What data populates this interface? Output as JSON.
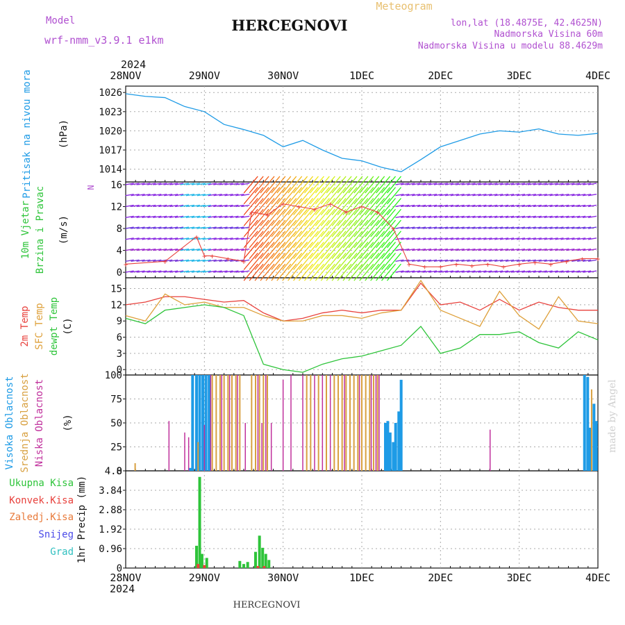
{
  "header": {
    "model_label": "Model",
    "model_name": "wrf-nmm_v3.9.1 e1km",
    "station": "HERCEGNOVI",
    "product": "Meteogram",
    "lonlat": "lon,lat (18.4875E, 42.4625N)",
    "altitude": "Nadmorska Visina 60m",
    "model_altitude": "Nadmorska Visina u modelu 88.4629m",
    "year_top": "2024",
    "year_bottom": "2024",
    "footer_station": "HERCEGNOVI",
    "credit": "made by Angel"
  },
  "colors": {
    "pressure": "#1e9be6",
    "temp2m": "#e8413c",
    "sfctemp": "#dea03a",
    "dewpt": "#2ec43a",
    "high_cloud": "#1e9be6",
    "mid_cloud": "#d8a040",
    "low_cloud": "#c0309c",
    "precip_total": "#2ec43a",
    "precip_conv": "#e8413c",
    "precip_frozen": "#e87a3a",
    "snow": "#4a4ae8",
    "hail": "#30c0c0",
    "wind_axis": "#2ec43a",
    "grid": "#aaaaaa",
    "model_text": "#b050d0"
  },
  "time_axis": {
    "labels": [
      "28NOV",
      "29NOV",
      "30NOV",
      "1DEC",
      "2DEC",
      "3DEC",
      "4DEC"
    ]
  },
  "chart_data": [
    {
      "type": "line",
      "panel": "pressure",
      "ylabel_lines": [
        "Pritisak na nivou mora"
      ],
      "unit": "(hPa)",
      "ylim": [
        1012,
        1027
      ],
      "yticks": [
        1014,
        1017,
        1020,
        1023,
        1026
      ],
      "series": [
        {
          "x": [
            0,
            0.25,
            0.5,
            0.75,
            1.0,
            1.25,
            1.5,
            1.75,
            2.0,
            2.25,
            2.5,
            2.75,
            3.0,
            3.25,
            3.5,
            3.75,
            4.0,
            4.25,
            4.5,
            4.75,
            5.0,
            5.25,
            5.5,
            5.75,
            6.0
          ],
          "values": [
            1025.8,
            1025.4,
            1025.2,
            1023.8,
            1023.0,
            1021.0,
            1020.2,
            1019.3,
            1017.5,
            1018.5,
            1017.0,
            1015.7,
            1015.3,
            1014.3,
            1013.6,
            1015.5,
            1017.5,
            1018.5,
            1019.5,
            1020.0,
            1019.8,
            1020.3,
            1019.5,
            1019.3,
            1019.6
          ]
        }
      ]
    },
    {
      "type": "line",
      "panel": "wind",
      "ylabel_lines": [
        "10m Vjetar",
        "Brzina i Pravac"
      ],
      "unit": "(m/s)",
      "ylim": [
        -1,
        16.5
      ],
      "yticks": [
        0,
        4,
        8,
        12,
        16
      ],
      "compass": "N",
      "series": [
        {
          "x": [
            0,
            0.5,
            0.9,
            1.0,
            1.1,
            1.3,
            1.5,
            1.6,
            1.8,
            2.0,
            2.2,
            2.4,
            2.6,
            2.8,
            3.0,
            3.2,
            3.4,
            3.6,
            3.8,
            4.0,
            4.2,
            4.4,
            4.6,
            4.8,
            5.0,
            5.2,
            5.4,
            5.6,
            5.8,
            6.0
          ],
          "values": [
            1.5,
            2.0,
            6.5,
            3.0,
            3.0,
            2.5,
            2.0,
            11.0,
            10.5,
            12.5,
            12.0,
            11.5,
            12.5,
            11.0,
            12.0,
            11.0,
            8.0,
            1.5,
            1.0,
            1.0,
            1.5,
            1.2,
            1.5,
            1.0,
            1.5,
            1.8,
            1.5,
            2.0,
            2.5,
            2.5
          ]
        }
      ]
    },
    {
      "type": "line",
      "panel": "temperature",
      "ylabel_lines": [
        "2m Temp",
        "SFC Temp",
        "dewpt Temp"
      ],
      "unit": "(C)",
      "ylim": [
        -1,
        17
      ],
      "yticks": [
        0,
        3,
        6,
        9,
        12,
        15
      ],
      "x": [
        0,
        0.25,
        0.5,
        0.75,
        1.0,
        1.25,
        1.5,
        1.75,
        2.0,
        2.25,
        2.5,
        2.75,
        3.0,
        3.25,
        3.5,
        3.75,
        4.0,
        4.25,
        4.5,
        4.75,
        5.0,
        5.25,
        5.5,
        5.75,
        6.0
      ],
      "series": [
        {
          "name": "2m Temp",
          "values": [
            12.0,
            12.5,
            13.5,
            13.5,
            13.0,
            12.5,
            12.8,
            10.5,
            9.0,
            9.5,
            10.5,
            11.0,
            10.5,
            11.0,
            11.0,
            16.0,
            12.0,
            12.5,
            11.0,
            13.0,
            11.0,
            12.5,
            11.5,
            11.0,
            11.0
          ]
        },
        {
          "name": "SFC Temp",
          "values": [
            10.0,
            9.0,
            14.0,
            12.0,
            12.5,
            11.5,
            11.5,
            10.0,
            9.0,
            9.0,
            10.0,
            10.0,
            9.5,
            10.5,
            11.0,
            16.5,
            11.0,
            9.5,
            8.0,
            14.5,
            10.0,
            7.5,
            13.5,
            9.0,
            8.5
          ]
        },
        {
          "name": "dewpt Temp",
          "values": [
            9.5,
            8.5,
            11.0,
            11.5,
            12.0,
            11.5,
            10.0,
            1.0,
            0.0,
            -0.5,
            1.0,
            2.0,
            2.5,
            3.5,
            4.5,
            8.0,
            3.0,
            4.0,
            6.5,
            6.5,
            7.0,
            5.0,
            4.0,
            7.0,
            5.5
          ]
        }
      ]
    },
    {
      "type": "bar",
      "panel": "clouds",
      "ylabel_lines": [
        "Visoka Oblacnost",
        "Srednja Oblacnost",
        "Niska Oblacnost"
      ],
      "unit": "(%)",
      "ylim": [
        0,
        100
      ],
      "yticks": [
        0,
        25,
        50,
        75,
        100
      ],
      "series": [
        {
          "name": "Visoka Oblacnost",
          "bars": [
            [
              0.82,
              3
            ],
            [
              0.85,
              100
            ],
            [
              0.9,
              100
            ],
            [
              0.94,
              100
            ],
            [
              0.98,
              100
            ],
            [
              1.02,
              100
            ],
            [
              1.06,
              100
            ],
            [
              3.3,
              50
            ],
            [
              3.33,
              52
            ],
            [
              3.36,
              40
            ],
            [
              3.4,
              30
            ],
            [
              3.43,
              50
            ],
            [
              3.47,
              62
            ],
            [
              3.5,
              95
            ],
            [
              5.83,
              100
            ],
            [
              5.87,
              98
            ],
            [
              5.9,
              45
            ],
            [
              5.95,
              70
            ],
            [
              5.98,
              52
            ]
          ]
        },
        {
          "name": "Srednja Oblacnost",
          "bars": [
            [
              0.12,
              8
            ],
            [
              0.92,
              30
            ],
            [
              1.1,
              100
            ],
            [
              1.15,
              100
            ],
            [
              1.2,
              100
            ],
            [
              1.25,
              100
            ],
            [
              1.3,
              100
            ],
            [
              1.35,
              100
            ],
            [
              1.4,
              100
            ],
            [
              1.45,
              100
            ],
            [
              1.6,
              100
            ],
            [
              1.65,
              100
            ],
            [
              1.7,
              100
            ],
            [
              1.75,
              100
            ],
            [
              1.8,
              100
            ],
            [
              2.3,
              100
            ],
            [
              2.35,
              100
            ],
            [
              2.45,
              100
            ],
            [
              2.55,
              100
            ],
            [
              2.65,
              100
            ],
            [
              2.7,
              100
            ],
            [
              2.75,
              100
            ],
            [
              2.8,
              100
            ],
            [
              2.85,
              100
            ],
            [
              2.9,
              100
            ],
            [
              2.95,
              100
            ],
            [
              3.0,
              100
            ],
            [
              3.05,
              100
            ],
            [
              3.1,
              100
            ],
            [
              3.15,
              100
            ],
            [
              3.2,
              100
            ],
            [
              5.92,
              85
            ]
          ]
        },
        {
          "name": "Niska Oblacnost",
          "bars": [
            [
              0.55,
              52
            ],
            [
              0.75,
              40
            ],
            [
              0.8,
              35
            ],
            [
              1.0,
              48
            ],
            [
              1.08,
              100
            ],
            [
              1.22,
              100
            ],
            [
              1.32,
              100
            ],
            [
              1.42,
              100
            ],
            [
              1.52,
              50
            ],
            [
              1.68,
              100
            ],
            [
              1.73,
              50
            ],
            [
              1.78,
              100
            ],
            [
              1.85,
              50
            ],
            [
              2.0,
              95
            ],
            [
              2.1,
              100
            ],
            [
              2.25,
              100
            ],
            [
              2.4,
              100
            ],
            [
              2.5,
              100
            ],
            [
              2.6,
              100
            ],
            [
              2.78,
              100
            ],
            [
              2.97,
              100
            ],
            [
              3.12,
              100
            ],
            [
              3.18,
              100
            ],
            [
              3.22,
              100
            ],
            [
              4.63,
              43
            ]
          ]
        }
      ]
    },
    {
      "type": "bar",
      "panel": "precipitation",
      "ylabel_lines": [
        "Ukupna Kisa",
        "Konvek.Kisa",
        "Zaledj.Kisa",
        "Snijeg",
        "Grad"
      ],
      "axis_title": "1hr Precip (mm)",
      "ylim": [
        0,
        4.8
      ],
      "yticks": [
        0,
        0.96,
        1.92,
        2.88,
        3.84,
        4.8
      ],
      "series": [
        {
          "name": "Ukupna Kisa",
          "bars": [
            [
              0.9,
              1.1
            ],
            [
              0.94,
              4.5
            ],
            [
              0.97,
              0.7
            ],
            [
              1.03,
              0.5
            ],
            [
              1.45,
              0.35
            ],
            [
              1.5,
              0.2
            ],
            [
              1.55,
              0.3
            ],
            [
              1.65,
              0.8
            ],
            [
              1.7,
              1.6
            ],
            [
              1.74,
              1.0
            ],
            [
              1.78,
              0.7
            ],
            [
              1.82,
              0.4
            ]
          ]
        },
        {
          "name": "Konvek.Kisa",
          "bars": [
            [
              0.92,
              0.2
            ],
            [
              1.0,
              0.15
            ],
            [
              1.68,
              0.1
            ],
            [
              1.76,
              0.1
            ]
          ]
        }
      ]
    }
  ]
}
